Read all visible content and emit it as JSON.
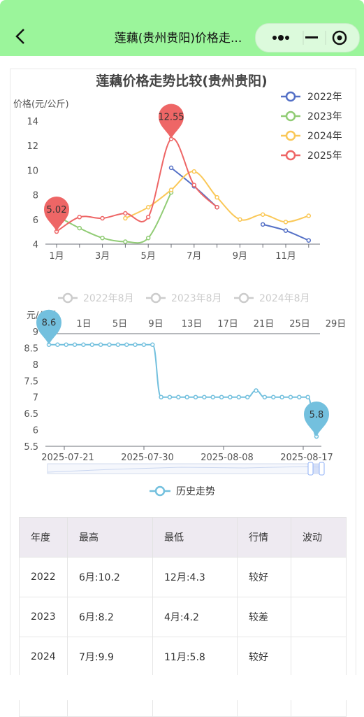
{
  "nav": {
    "title": "莲藕(贵州贵阳)价格走..."
  },
  "chart_data": [
    {
      "type": "line",
      "title": "莲藕价格走势比较(贵州贵阳)",
      "ylabel": "价格(元/公斤)",
      "ylim": [
        4,
        14
      ],
      "yticks": [
        4,
        6,
        8,
        10,
        12,
        14
      ],
      "xticks": [
        "1月",
        "3月",
        "5月",
        "7月",
        "9月",
        "11月"
      ],
      "x": [
        1,
        2,
        3,
        4,
        5,
        6,
        7,
        8,
        9,
        10,
        11,
        12
      ],
      "series": [
        {
          "name": "2022年",
          "color": "#5470c6",
          "values": [
            null,
            null,
            null,
            null,
            null,
            10.2,
            8.7,
            7.0,
            null,
            5.6,
            5.1,
            4.3
          ]
        },
        {
          "name": "2023年",
          "color": "#91cc75",
          "values": [
            6.3,
            5.3,
            4.5,
            4.2,
            4.5,
            8.2,
            null,
            null,
            null,
            null,
            null,
            null
          ]
        },
        {
          "name": "2024年",
          "color": "#fac858",
          "values": [
            null,
            null,
            null,
            6.1,
            7.0,
            8.4,
            9.9,
            7.8,
            6.0,
            6.4,
            5.8,
            6.3
          ]
        },
        {
          "name": "2025年",
          "color": "#ee6666",
          "values": [
            5.02,
            6.2,
            6.1,
            6.5,
            6.2,
            12.55,
            8.8,
            7.0,
            null,
            null,
            null,
            null
          ]
        }
      ],
      "markers": [
        {
          "label": "5.02",
          "x": 1,
          "y": 5.02
        },
        {
          "label": "12.55",
          "x": 6,
          "y": 12.55
        }
      ],
      "legend": "top-right"
    },
    {
      "type": "line",
      "legend_items": [
        "2022年8月",
        "2023年8月",
        "2024年8月"
      ],
      "ylabel": "元/公斤",
      "yticks": [],
      "xticks": [
        "1日",
        "5日",
        "9日",
        "13日",
        "17日",
        "21日",
        "25日",
        "29日"
      ],
      "series": []
    },
    {
      "type": "line",
      "ylim": [
        5.5,
        9
      ],
      "yticks": [
        "5.5",
        "6",
        "6.5",
        "7",
        "7.5",
        "8",
        "8.5",
        "9"
      ],
      "xticks": [
        "2025-07-21",
        "2025-07-30",
        "2025-08-08",
        "2025-08-17"
      ],
      "series": [
        {
          "name": "历史走势",
          "color": "#73c0de",
          "values": [
            8.6,
            8.6,
            8.6,
            8.6,
            8.6,
            8.6,
            8.6,
            8.6,
            8.6,
            8.6,
            8.6,
            8.6,
            8.6,
            7.0,
            7.0,
            7.0,
            7.0,
            7.0,
            7.0,
            7.0,
            7.0,
            7.0,
            7.0,
            7.0,
            7.2,
            7.0,
            7.0,
            7.0,
            7.0,
            7.0,
            7.0,
            5.8
          ]
        }
      ],
      "markers": [
        {
          "label": "8.6",
          "index": 0
        },
        {
          "label": "5.8",
          "index": 31
        }
      ]
    }
  ],
  "table": {
    "headers": [
      "年度",
      "最高",
      "最低",
      "行情",
      "波动"
    ],
    "rows": [
      [
        "2022",
        "6月:10.2",
        "12月:4.3",
        "较好",
        ""
      ],
      [
        "2023",
        "6月:8.2",
        "4月:4.2",
        "较差",
        ""
      ],
      [
        "2024",
        "7月:9.9",
        "11月:5.8",
        "较好",
        ""
      ]
    ]
  }
}
